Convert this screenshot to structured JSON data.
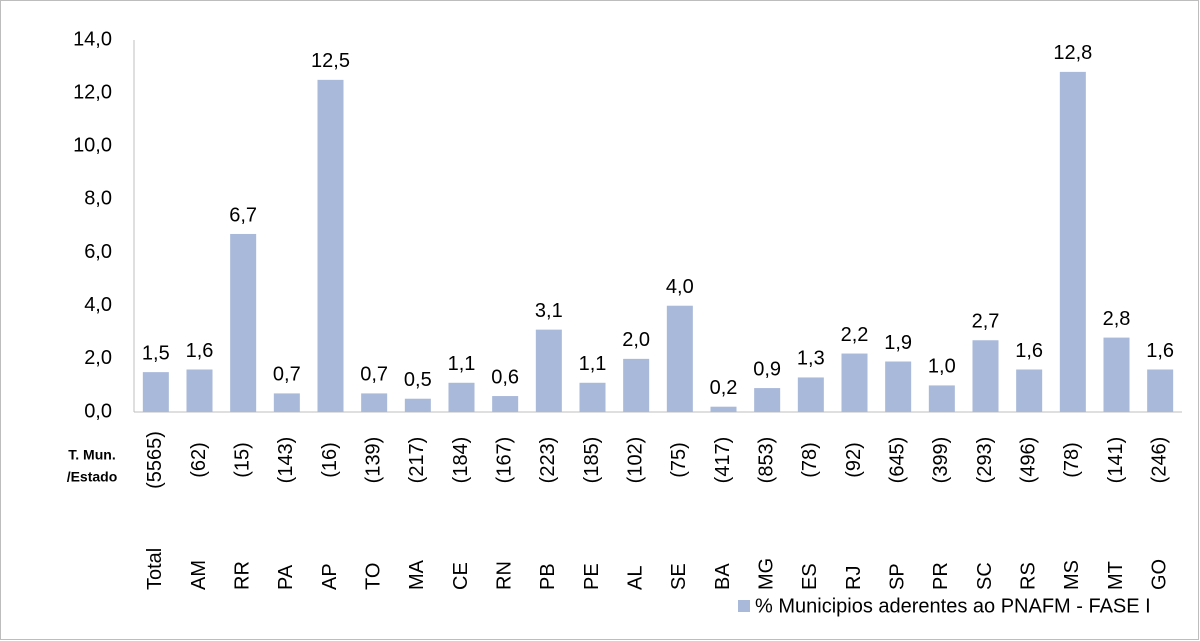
{
  "chart_data": {
    "type": "bar",
    "categories": [
      "Total",
      "AM",
      "RR",
      "PA",
      "AP",
      "TO",
      "MA",
      "CE",
      "RN",
      "PB",
      "PE",
      "AL",
      "SE",
      "BA",
      "MG",
      "ES",
      "RJ",
      "SP",
      "PR",
      "SC",
      "RS",
      "MS",
      "MT",
      "GO"
    ],
    "counts": [
      "(5565)",
      "(62)",
      "(15)",
      "(143)",
      "(16)",
      "(139)",
      "(217)",
      "(184)",
      "(167)",
      "(223)",
      "(185)",
      "(102)",
      "(75)",
      "(417)",
      "(853)",
      "(78)",
      "(92)",
      "(645)",
      "(399)",
      "(293)",
      "(496)",
      "(78)",
      "(141)",
      "(246)"
    ],
    "counts_label": [
      "T. Mun.",
      "/Estado"
    ],
    "series": [
      {
        "name": "% Municipios aderentes ao PNAFM - FASE I",
        "color": "#a9b9da",
        "values": [
          1.5,
          1.6,
          6.7,
          0.7,
          12.5,
          0.7,
          0.5,
          1.1,
          0.6,
          3.1,
          1.1,
          2.0,
          4.0,
          0.2,
          0.9,
          1.3,
          2.2,
          1.9,
          1.0,
          2.7,
          1.6,
          12.8,
          2.8,
          1.6
        ],
        "value_labels": [
          "1,5",
          "1,6",
          "6,7",
          "0,7",
          "12,5",
          "0,7",
          "0,5",
          "1,1",
          "0,6",
          "3,1",
          "1,1",
          "2,0",
          "4,0",
          "0,2",
          "0,9",
          "1,3",
          "2,2",
          "1,9",
          "1,0",
          "2,7",
          "1,6",
          "12,8",
          "2,8",
          "1,6"
        ]
      }
    ],
    "ylim": [
      0,
      14
    ],
    "yticks": [
      {
        "value": 0,
        "label": "0,0"
      },
      {
        "value": 2,
        "label": "2,0"
      },
      {
        "value": 4,
        "label": "4,0"
      },
      {
        "value": 6,
        "label": "6,0"
      },
      {
        "value": 8,
        "label": "8,0"
      },
      {
        "value": 10,
        "label": "10,0"
      },
      {
        "value": 12,
        "label": "12,0"
      },
      {
        "value": 14,
        "label": "14,0"
      }
    ],
    "grid": false
  }
}
